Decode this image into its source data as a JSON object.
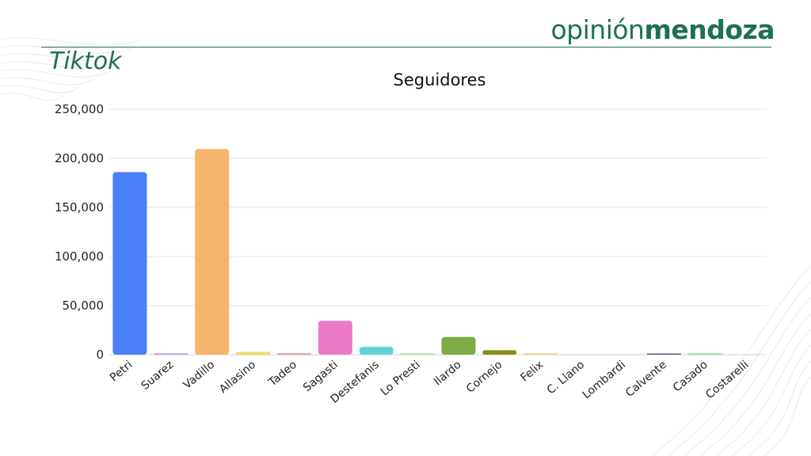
{
  "header": {
    "brand_regular": "opinión",
    "brand_bold": "mendoza",
    "section_title": "Tiktok"
  },
  "colors": {
    "brand": "#1f6f58",
    "grid": "#e6e6e6"
  },
  "chart_data": {
    "type": "bar",
    "title": "Seguidores",
    "xlabel": "",
    "ylabel": "",
    "ylim": [
      0,
      250000
    ],
    "yticks": [
      0,
      50000,
      100000,
      150000,
      200000,
      250000
    ],
    "grid": true,
    "legend": "none",
    "categories": [
      "Petri",
      "Suarez",
      "Vadillo",
      "Allasino",
      "Tadeo",
      "Sagasti",
      "Destefanis",
      "Lo Presti",
      "Ilardo",
      "Cornejo",
      "Felix",
      "C. Llano",
      "Lombardi",
      "Calvente",
      "Casado",
      "Costarelli"
    ],
    "values": [
      186000,
      1200,
      209500,
      2800,
      1200,
      34500,
      8000,
      700,
      18000,
      4500,
      800,
      0,
      0,
      500,
      800,
      0
    ],
    "bar_colors": [
      "#4a7ff7",
      "#b68cf2",
      "#f4b66c",
      "#f1dc63",
      "#f08080",
      "#ea7ac8",
      "#5bd6d2",
      "#93e09a",
      "#7dab45",
      "#8c8c16",
      "#f7c16d",
      "#c8c8c8",
      "#c8c8c8",
      "#5a5a7a",
      "#7be07b",
      "#c8c8c8"
    ]
  }
}
